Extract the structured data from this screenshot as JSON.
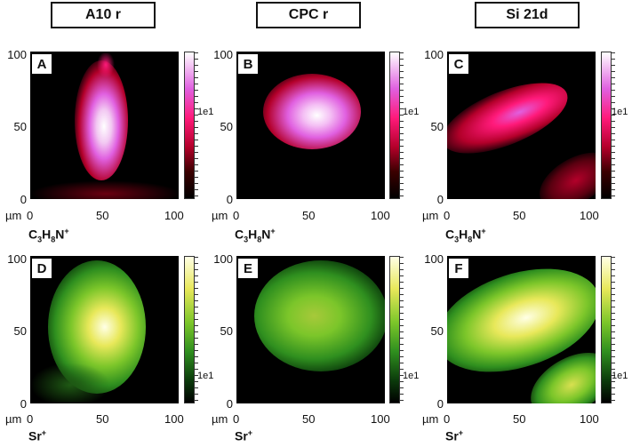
{
  "columns": [
    {
      "title": "A10 r"
    },
    {
      "title": "CPC r"
    },
    {
      "title": "Si 21d"
    }
  ],
  "panels": [
    {
      "tag": "A"
    },
    {
      "tag": "B"
    },
    {
      "tag": "C"
    },
    {
      "tag": "D"
    },
    {
      "tag": "E"
    },
    {
      "tag": "F"
    }
  ],
  "rows": [
    {
      "species_html": "C<sub>3</sub>H<sub>8</sub>N<sup>+</sup>",
      "colormap": "magenta"
    },
    {
      "species_html": "Sr<sup>+</sup>",
      "colormap": "green-yellow"
    }
  ],
  "axis": {
    "y_ticks": [
      "100",
      "50",
      "0"
    ],
    "x_ticks": [
      "0",
      "50",
      "100"
    ],
    "unit": "µm"
  },
  "colorbar_label": "1e1",
  "colors": {
    "magenta_scale": [
      "#000000",
      "#3a0000",
      "#b3002a",
      "#ff1a7a",
      "#e060e0",
      "#ffffff"
    ],
    "green_scale": [
      "#000000",
      "#0b3a0b",
      "#2f8f1f",
      "#7cc62a",
      "#e8e85a",
      "#ffffe6"
    ]
  }
}
